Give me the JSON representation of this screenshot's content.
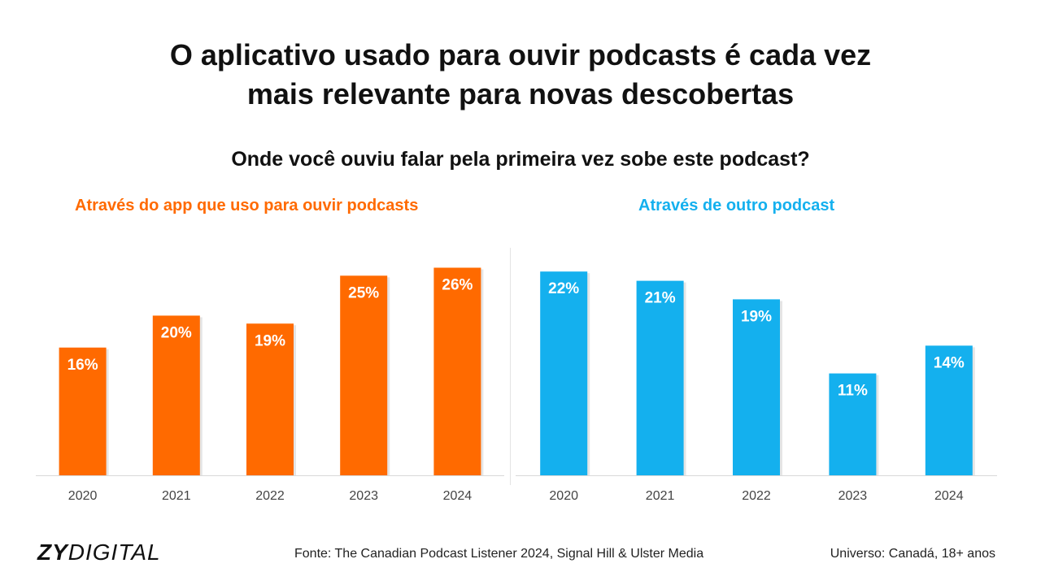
{
  "title_line1": "O aplicativo usado para ouvir podcasts é cada vez",
  "title_line2": "mais relevante para novas descobertas",
  "subtitle": "Onde você ouviu falar pela primeira vez sobe este podcast?",
  "footer": {
    "logo_bold": "ZY",
    "logo_regular": "DIGITAL",
    "source": "Fonte: The Canadian Podcast Listener 2024, Signal Hill & Ulster Media",
    "universe": "Universo: Canadá, 18+ anos"
  },
  "chart_data": [
    {
      "type": "bar",
      "title": "Através do app que uso para ouvir podcasts",
      "categories": [
        "2020",
        "2021",
        "2022",
        "2023",
        "2024"
      ],
      "values": [
        16,
        20,
        19,
        25,
        26
      ],
      "value_labels": [
        "16%",
        "20%",
        "19%",
        "25%",
        "26%"
      ],
      "unit": "%",
      "color": "#ff6a00",
      "ylim": [
        0,
        29
      ],
      "grid": false,
      "legend": "none"
    },
    {
      "type": "bar",
      "title": "Através de outro podcast",
      "categories": [
        "2020",
        "2021",
        "2022",
        "2023",
        "2024"
      ],
      "values": [
        22,
        21,
        19,
        11,
        14
      ],
      "value_labels": [
        "22%",
        "21%",
        "19%",
        "11%",
        "14%"
      ],
      "unit": "%",
      "color": "#14b0ee",
      "ylim": [
        0,
        25
      ],
      "grid": false,
      "legend": "none"
    }
  ]
}
